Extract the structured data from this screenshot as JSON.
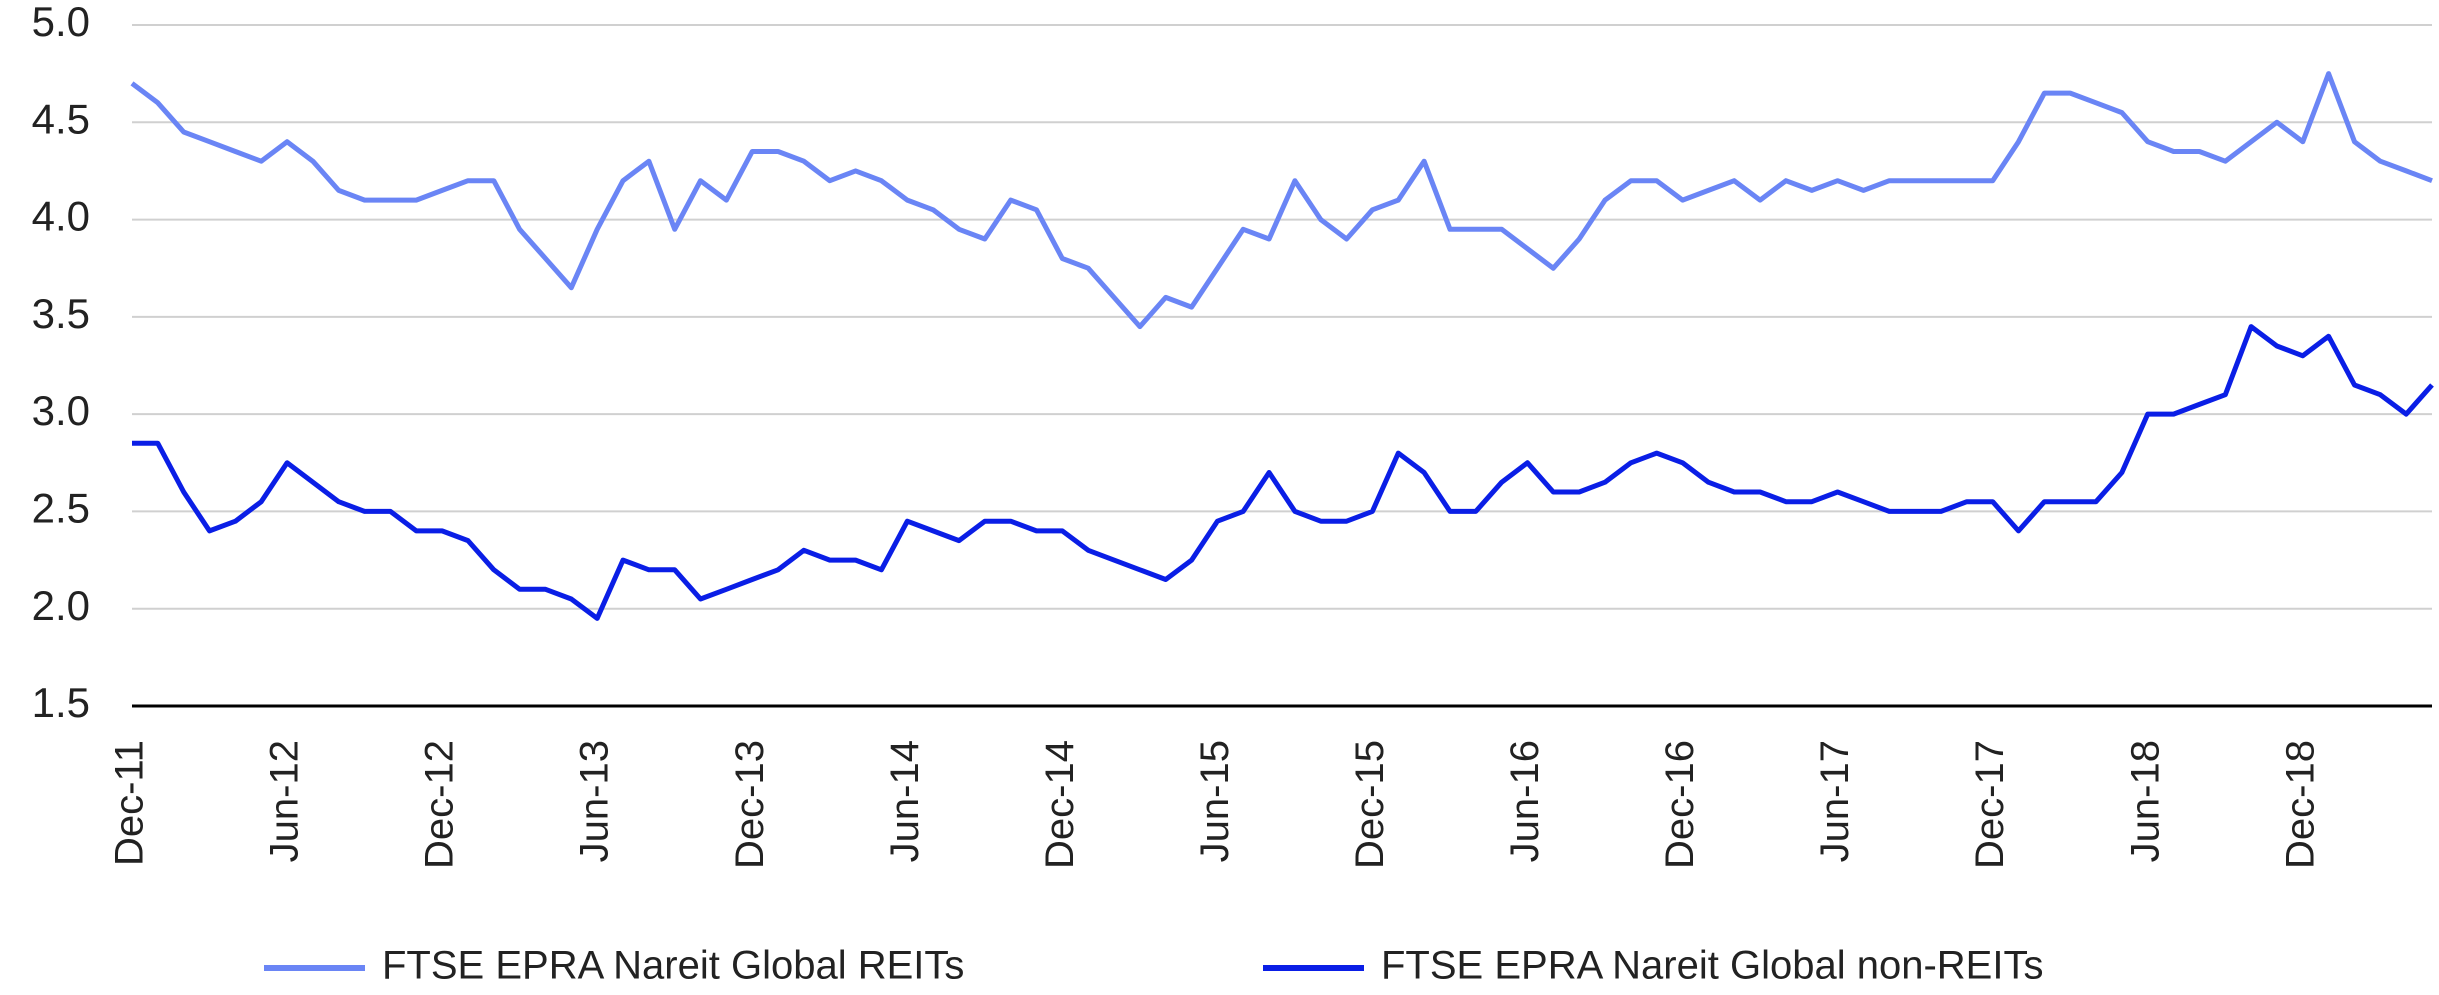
{
  "chart_data": {
    "type": "line",
    "categories": [
      "Dec-11",
      null,
      null,
      null,
      null,
      null,
      "Jun-12",
      null,
      null,
      null,
      null,
      null,
      "Dec-12",
      null,
      null,
      null,
      null,
      null,
      "Jun-13",
      null,
      null,
      null,
      null,
      null,
      "Dec-13",
      null,
      null,
      null,
      null,
      null,
      "Jun-14",
      null,
      null,
      null,
      null,
      null,
      "Dec-14",
      null,
      null,
      null,
      null,
      null,
      "Jun-15",
      null,
      null,
      null,
      null,
      null,
      "Dec-15",
      null,
      null,
      null,
      null,
      null,
      "Jun-16",
      null,
      null,
      null,
      null,
      null,
      "Dec-16",
      null,
      null,
      null,
      null,
      null,
      "Jun-17",
      null,
      null,
      null,
      null,
      null,
      "Dec-17",
      null,
      null,
      null,
      null,
      null,
      "Jun-18",
      null,
      null,
      null,
      null,
      null,
      "Dec-18",
      null,
      null,
      null,
      null,
      null
    ],
    "series": [
      {
        "name": "FTSE EPRA Nareit Global REITs",
        "color": "#6a85f5",
        "values": [
          4.7,
          4.6,
          4.45,
          4.4,
          4.35,
          4.3,
          4.4,
          4.3,
          4.15,
          4.1,
          4.1,
          4.1,
          4.15,
          4.2,
          4.2,
          3.95,
          3.8,
          3.65,
          3.95,
          4.2,
          4.3,
          3.95,
          4.2,
          4.1,
          4.35,
          4.35,
          4.3,
          4.2,
          4.25,
          4.2,
          4.1,
          4.05,
          3.95,
          3.9,
          4.1,
          4.05,
          3.8,
          3.75,
          3.6,
          3.45,
          3.6,
          3.55,
          3.75,
          3.95,
          3.9,
          4.2,
          4.0,
          3.9,
          4.05,
          4.1,
          4.3,
          3.95,
          3.95,
          3.95,
          3.85,
          3.75,
          3.9,
          4.1,
          4.2,
          4.2,
          4.1,
          4.15,
          4.2,
          4.1,
          4.2,
          4.15,
          4.2,
          4.15,
          4.2,
          4.2,
          4.2,
          4.2,
          4.2,
          4.4,
          4.65,
          4.65,
          4.6,
          4.55,
          4.4,
          4.35,
          4.35,
          4.3,
          4.4,
          4.5,
          4.4,
          4.75,
          4.4,
          4.3,
          4.25,
          4.2
        ]
      },
      {
        "name": "FTSE EPRA Nareit Global non-REITs",
        "color": "#0a1ee6",
        "values": [
          2.85,
          2.85,
          2.6,
          2.4,
          2.45,
          2.55,
          2.75,
          2.65,
          2.55,
          2.5,
          2.5,
          2.4,
          2.4,
          2.35,
          2.2,
          2.1,
          2.1,
          2.05,
          1.95,
          2.25,
          2.2,
          2.2,
          2.05,
          2.1,
          2.15,
          2.2,
          2.3,
          2.25,
          2.25,
          2.2,
          2.45,
          2.4,
          2.35,
          2.45,
          2.45,
          2.4,
          2.4,
          2.3,
          2.25,
          2.2,
          2.15,
          2.25,
          2.45,
          2.5,
          2.7,
          2.5,
          2.45,
          2.45,
          2.5,
          2.8,
          2.7,
          2.5,
          2.5,
          2.65,
          2.75,
          2.6,
          2.6,
          2.65,
          2.75,
          2.8,
          2.75,
          2.65,
          2.6,
          2.6,
          2.55,
          2.55,
          2.6,
          2.55,
          2.5,
          2.5,
          2.5,
          2.55,
          2.55,
          2.4,
          2.55,
          2.55,
          2.55,
          2.7,
          3.0,
          3.0,
          3.05,
          3.1,
          3.45,
          3.35,
          3.3,
          3.4,
          3.15,
          3.1,
          3.0,
          3.15
        ]
      }
    ],
    "ylim": [
      1.5,
      5.0
    ],
    "yticks": [
      {
        "value": 1.5,
        "label": "1.5"
      },
      {
        "value": 2.0,
        "label": "2.0"
      },
      {
        "value": 2.5,
        "label": "2.5"
      },
      {
        "value": 3.0,
        "label": "3.0"
      },
      {
        "value": 3.5,
        "label": "3.5"
      },
      {
        "value": 4.0,
        "label": "4.0"
      },
      {
        "value": 4.5,
        "label": "4.5"
      },
      {
        "value": 5.0,
        "label": "5.0"
      }
    ],
    "grid": true,
    "legend": "bottom"
  }
}
